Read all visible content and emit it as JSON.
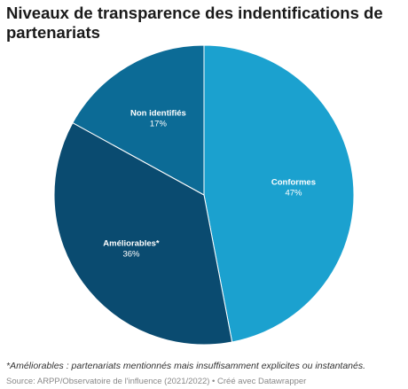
{
  "title": "Niveaux de transparence des indentifications de partenariats",
  "chart_data": {
    "type": "pie",
    "start_angle_deg": 0,
    "direction": "clockwise",
    "slices": [
      {
        "label": "Conformes",
        "value": 47,
        "value_label": "47%",
        "color": "#1ba1cf"
      },
      {
        "label": "Améliorables*",
        "value": 36,
        "value_label": "36%",
        "color": "#0a4b70"
      },
      {
        "label": "Non identifiés",
        "value": 17,
        "value_label": "17%",
        "color": "#0c6b96"
      }
    ]
  },
  "footnote": "*Améliorables : partenariats mentionnés mais insuffisamment explicites ou instantanés.",
  "source": "Source: ARPP/Observatoire de l'influence (2021/2022) • Créé avec Datawrapper"
}
